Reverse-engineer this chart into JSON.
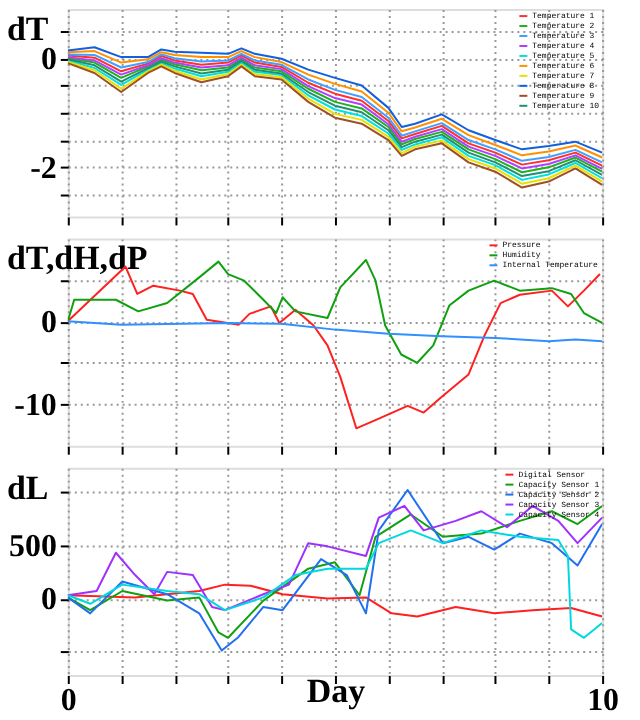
{
  "chart_data": [
    {
      "type": "line",
      "ylabel": "dT",
      "legend": "top right",
      "grid": true,
      "tick_labels": "y",
      "xlim": [
        0,
        10
      ],
      "xticks": [
        0,
        {
          "value": 1,
          "label": null
        },
        {
          "value": 2,
          "label": null
        },
        {
          "value": 3,
          "label": null
        },
        {
          "value": 4,
          "label": null
        },
        {
          "value": 5,
          "label": null
        },
        {
          "value": 6,
          "label": null
        },
        {
          "value": 7,
          "label": null
        },
        {
          "value": 8,
          "label": null
        },
        {
          "value": 9,
          "label": null
        },
        10
      ],
      "ylim": [
        -2.9,
        0.9
      ],
      "yticks": [
        {
          "value": 0.5,
          "label": null
        },
        0,
        {
          "value": -0.5,
          "label": null
        },
        {
          "value": -1,
          "label": null
        },
        {
          "value": -1.5,
          "label": null
        },
        -2,
        {
          "value": -2.5,
          "label": null
        }
      ],
      "x": [
        0,
        0.5,
        1,
        1.5,
        1.75,
        2,
        2.5,
        3,
        3.25,
        3.5,
        4,
        4.5,
        5,
        5.5,
        6,
        6.25,
        6.5,
        7,
        7.5,
        8,
        8.5,
        9,
        9.5,
        10
      ],
      "series": [
        {
          "name": "Temperature 1",
          "color": "#ff3030",
          "values": [
            0.05,
            0.01,
            -0.24,
            -0.1,
            0.04,
            -0.04,
            -0.12,
            -0.08,
            0.05,
            -0.08,
            -0.16,
            -0.45,
            -0.65,
            -0.78,
            -1.15,
            -1.47,
            -1.39,
            -1.24,
            -1.56,
            -1.73,
            -1.95,
            -1.87,
            -1.73,
            -1.97
          ]
        },
        {
          "name": "Temperature 2",
          "color": "#20b020",
          "values": [
            0,
            -0.08,
            -0.36,
            -0.15,
            -0.03,
            -0.11,
            -0.22,
            -0.17,
            -0.02,
            -0.17,
            -0.24,
            -0.56,
            -0.8,
            -0.92,
            -1.26,
            -1.58,
            -1.48,
            -1.35,
            -1.67,
            -1.85,
            -2.09,
            -2.0,
            -1.82,
            -2.08
          ]
        },
        {
          "name": "Temperature 3",
          "color": "#40a0ff",
          "values": [
            0.07,
            0.06,
            -0.17,
            -0.07,
            0.07,
            0,
            -0.06,
            -0.04,
            0.08,
            -0.04,
            -0.12,
            -0.39,
            -0.58,
            -0.71,
            -1.09,
            -1.42,
            -1.34,
            -1.19,
            -1.5,
            -1.67,
            -1.88,
            -1.81,
            -1.68,
            -1.91
          ]
        },
        {
          "name": "Temperature 4",
          "color": "#b040ff",
          "values": [
            0.02,
            -0.04,
            -0.3,
            -0.13,
            0,
            -0.08,
            -0.17,
            -0.13,
            0.01,
            -0.13,
            -0.2,
            -0.51,
            -0.73,
            -0.85,
            -1.21,
            -1.53,
            -1.44,
            -1.3,
            -1.62,
            -1.79,
            -2.02,
            -1.94,
            -1.78,
            -2.03
          ]
        },
        {
          "name": "Temperature 5",
          "color": "#00e0e0",
          "values": [
            -0.04,
            -0.18,
            -0.49,
            -0.21,
            -0.09,
            -0.19,
            -0.33,
            -0.25,
            -0.08,
            -0.25,
            -0.31,
            -0.68,
            -0.94,
            -1.06,
            -1.38,
            -1.68,
            -1.58,
            -1.45,
            -1.79,
            -1.96,
            -2.23,
            -2.13,
            -1.92,
            -2.2
          ]
        },
        {
          "name": "Temperature 6",
          "color": "#ff9000",
          "values": [
            0.11,
            0.13,
            -0.08,
            -0.02,
            0.11,
            0.06,
            0.02,
            0.02,
            0.13,
            0.02,
            -0.07,
            -0.3,
            -0.47,
            -0.61,
            -1.0,
            -1.34,
            -1.27,
            -1.11,
            -1.41,
            -1.59,
            -1.78,
            -1.71,
            -1.6,
            -1.82
          ]
        },
        {
          "name": "Temperature 7",
          "color": "#e8e000",
          "values": [
            -0.07,
            -0.22,
            -0.56,
            -0.24,
            -0.12,
            -0.23,
            -0.39,
            -0.29,
            -0.12,
            -0.29,
            -0.35,
            -0.74,
            -1.02,
            -1.13,
            -1.44,
            -1.74,
            -1.62,
            -1.51,
            -1.85,
            -2.02,
            -2.3,
            -2.2,
            -1.97,
            -2.26
          ]
        },
        {
          "name": "Temperature 8",
          "color": "#1060e0",
          "values": [
            0.14,
            0.2,
            0.02,
            0.02,
            0.16,
            0.12,
            0.1,
            0.08,
            0.18,
            0.08,
            -0.01,
            -0.21,
            -0.36,
            -0.5,
            -0.91,
            -1.26,
            -1.2,
            -1.03,
            -1.32,
            -1.5,
            -1.67,
            -1.61,
            -1.53,
            -1.73
          ]
        },
        {
          "name": "Temperature 9",
          "color": "#a05020",
          "values": [
            -0.09,
            -0.27,
            -0.62,
            -0.27,
            -0.15,
            -0.27,
            -0.44,
            -0.33,
            -0.15,
            -0.33,
            -0.39,
            -0.8,
            -1.09,
            -1.2,
            -1.5,
            -1.79,
            -1.67,
            -1.56,
            -1.91,
            -2.08,
            -2.37,
            -2.26,
            -2.02,
            -2.32
          ]
        },
        {
          "name": "Temperature 10",
          "color": "#209070",
          "values": [
            -0.02,
            -0.13,
            -0.43,
            -0.18,
            -0.06,
            -0.15,
            -0.28,
            -0.21,
            -0.05,
            -0.21,
            -0.28,
            -0.62,
            -0.87,
            -0.99,
            -1.32,
            -1.63,
            -1.53,
            -1.4,
            -1.73,
            -1.91,
            -2.16,
            -2.07,
            -1.87,
            -2.14
          ]
        }
      ]
    },
    {
      "type": "line",
      "ylabel": "dT,dH,dP",
      "legend": "top right",
      "grid": true,
      "tick_labels": "y",
      "xlim": [
        0,
        10
      ],
      "xticks": [
        0,
        {
          "value": 1,
          "label": null
        },
        {
          "value": 2,
          "label": null
        },
        {
          "value": 3,
          "label": null
        },
        {
          "value": 4,
          "label": null
        },
        {
          "value": 5,
          "label": null
        },
        {
          "value": 6,
          "label": null
        },
        {
          "value": 7,
          "label": null
        },
        {
          "value": 8,
          "label": null
        },
        {
          "value": 9,
          "label": null
        },
        10
      ],
      "ylim": [
        -15,
        10
      ],
      "yticks": [
        {
          "value": 5,
          "label": null
        },
        0,
        {
          "value": -5,
          "label": null
        },
        -10
      ],
      "series": [
        {
          "name": "Pressure",
          "color": "#ff2020",
          "x": [
            0,
            1.08,
            1.3,
            1.6,
            2.1,
            2.34,
            2.6,
            3.2,
            3.4,
            3.8,
            3.96,
            4.26,
            4.6,
            4.86,
            5.1,
            5.4,
            5.8,
            6.36,
            6.66,
            7.0,
            7.5,
            7.8,
            8.1,
            8.46,
            9.06,
            9.36,
            9.66,
            9.96
          ],
          "values": [
            0,
            6.6,
            3.3,
            4.3,
            3.7,
            3.3,
            0.2,
            -0.4,
            0.9,
            1.8,
            -0.2,
            1.4,
            -0.5,
            -2.9,
            -6.7,
            -12.9,
            -11.8,
            -10.2,
            -11,
            -9.1,
            -6.4,
            -1.7,
            2.2,
            3.2,
            3.7,
            1.8,
            3.7,
            5.7
          ]
        },
        {
          "name": "Humidity",
          "color": "#10a010",
          "x": [
            0,
            0.12,
            0.9,
            1.32,
            1.86,
            2.46,
            2.82,
            3.0,
            3.3,
            3.66,
            3.9,
            4.02,
            4.26,
            4.86,
            5.1,
            5.58,
            5.76,
            5.94,
            6.24,
            6.54,
            6.84,
            7.14,
            7.5,
            7.98,
            8.46,
            9.06,
            9.42,
            9.66,
            10
          ],
          "values": [
            0,
            2.6,
            2.6,
            1.2,
            2.2,
            5.3,
            7.2,
            5.7,
            4.9,
            2.6,
            1.0,
            2.9,
            1.2,
            0.4,
            4.1,
            7.4,
            4.9,
            -0.5,
            -4.0,
            -5.0,
            -2.9,
            1.9,
            3.7,
            4.9,
            3.7,
            4.0,
            3.3,
            1.0,
            -0.2
          ]
        },
        {
          "name": "Internal Temperature",
          "color": "#3090ff",
          "x": [
            0,
            1,
            3,
            4,
            5,
            6,
            7,
            8,
            9,
            9.5,
            10
          ],
          "values": [
            0,
            -0.4,
            -0.2,
            -0.3,
            -1.0,
            -1.5,
            -1.8,
            -2.0,
            -2.4,
            -2.2,
            -2.4
          ]
        }
      ]
    },
    {
      "type": "line",
      "ylabel": "dL",
      "xlabel": "Day",
      "legend": "top right",
      "grid": true,
      "xlim": [
        0,
        10
      ],
      "xticks": [
        0,
        {
          "value": 1,
          "label": null
        },
        {
          "value": 2,
          "label": null
        },
        {
          "value": 3,
          "label": null
        },
        {
          "value": 4,
          "label": null
        },
        {
          "value": 5,
          "label": null
        },
        {
          "value": 6,
          "label": null
        },
        {
          "value": 7,
          "label": null
        },
        {
          "value": 8,
          "label": null
        },
        {
          "value": 9,
          "label": null
        },
        10
      ],
      "ylim": [
        -720,
        1230
      ],
      "yticks": [
        {
          "value": 1000,
          "label": null
        },
        500,
        0,
        {
          "value": -500,
          "label": null
        }
      ],
      "series": [
        {
          "name": "Digital Sensor",
          "color": "#ff2020",
          "x": [
            0,
            1.26,
            2.46,
            2.94,
            3.42,
            4.02,
            4.86,
            5.58,
            6.06,
            6.54,
            7.26,
            7.98,
            8.7,
            9.42,
            10
          ],
          "values": [
            30,
            10,
            70,
            130,
            120,
            40,
            0,
            10,
            -140,
            -170,
            -80,
            -140,
            -110,
            -90,
            -170
          ]
        },
        {
          "name": "Capacity Sensor 1",
          "color": "#10a010",
          "x": [
            0,
            0.42,
            1.02,
            1.86,
            2.46,
            2.82,
            3.0,
            3.66,
            4.5,
            5.0,
            5.46,
            5.76,
            6.42,
            7.02,
            7.74,
            8.46,
            9.06,
            9.54,
            10
          ],
          "values": [
            10,
            -110,
            70,
            -20,
            10,
            -320,
            -370,
            -20,
            280,
            340,
            30,
            580,
            790,
            580,
            610,
            730,
            820,
            700,
            870
          ]
        },
        {
          "name": "Capacity Sensor 2",
          "color": "#2070f0",
          "x": [
            0,
            0.42,
            1.02,
            1.86,
            2.46,
            2.88,
            3.18,
            3.66,
            4.02,
            4.74,
            5.22,
            5.58,
            5.82,
            6.36,
            7.02,
            7.5,
            7.98,
            8.46,
            9.06,
            9.54,
            10
          ],
          "values": [
            10,
            -140,
            160,
            40,
            -140,
            -490,
            -370,
            -80,
            -110,
            370,
            220,
            -140,
            640,
            1020,
            520,
            580,
            460,
            610,
            520,
            310,
            700
          ]
        },
        {
          "name": "Capacity Sensor 3",
          "color": "#a030ff",
          "x": [
            0,
            0.54,
            0.9,
            1.26,
            1.62,
            1.86,
            2.34,
            2.7,
            2.94,
            3.66,
            4.14,
            4.5,
            4.86,
            5.58,
            5.82,
            6.3,
            6.66,
            7.26,
            7.74,
            8.22,
            8.7,
            9.18,
            9.54,
            10
          ],
          "values": [
            30,
            70,
            430,
            220,
            40,
            250,
            220,
            -80,
            -110,
            40,
            130,
            520,
            490,
            400,
            760,
            870,
            640,
            730,
            820,
            670,
            870,
            730,
            520,
            760
          ]
        },
        {
          "name": "Capacity Sensor 4",
          "color": "#00d8e0",
          "x": [
            0,
            0.42,
            1.02,
            1.86,
            2.46,
            2.94,
            3.66,
            4.26,
            4.86,
            5.58,
            5.82,
            6.42,
            7.02,
            7.74,
            8.46,
            9.18,
            9.36,
            9.42,
            9.66,
            10
          ],
          "values": [
            30,
            -50,
            130,
            70,
            40,
            -110,
            10,
            220,
            280,
            280,
            520,
            640,
            520,
            640,
            580,
            550,
            400,
            -290,
            -370,
            -230
          ]
        }
      ]
    }
  ]
}
